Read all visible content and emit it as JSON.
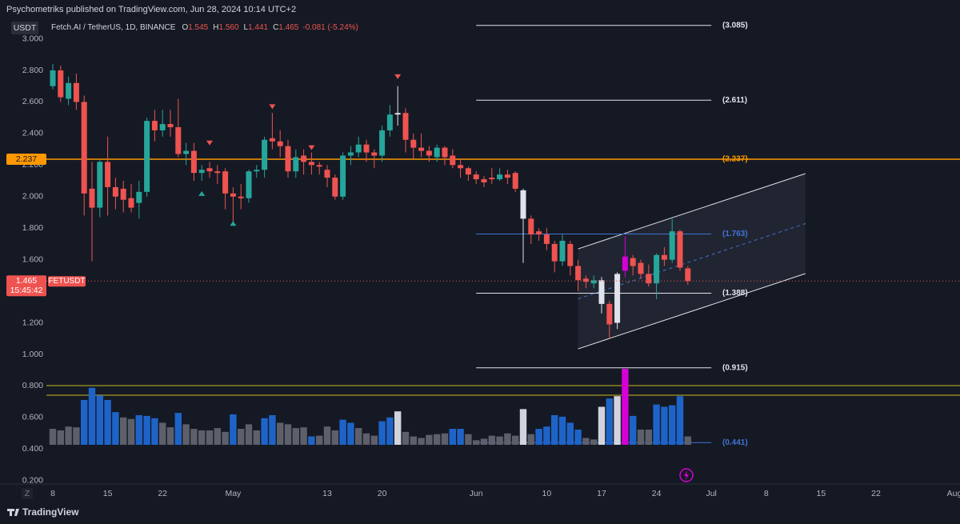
{
  "ui": {
    "header": "Psychometriks published on TradingView.com, Jun 28, 2024 10:14 UTC+2",
    "scale_button": "Z",
    "brand": "TradingView"
  },
  "chart_data": {
    "type": "candlestick",
    "currency": "USDT",
    "symbol": "FETUSDT",
    "countdown": "15:45:42",
    "legend": {
      "name": "Fetch.AI / TetherUS, 1D, BINANCE",
      "items": [
        {
          "key": "O",
          "value": "1.545"
        },
        {
          "key": "H",
          "value": "1.560"
        },
        {
          "key": "L",
          "value": "1.441"
        },
        {
          "key": "C",
          "value": "1.465"
        }
      ],
      "change": "-0.081 (-5.24%)"
    },
    "up_color": "#26a69a",
    "down_color": "#ef5350",
    "x": [
      "2024-04-08",
      "2024-04-09",
      "2024-04-10",
      "2024-04-11",
      "2024-04-12",
      "2024-04-13",
      "2024-04-14",
      "2024-04-15",
      "2024-04-16",
      "2024-04-17",
      "2024-04-18",
      "2024-04-19",
      "2024-04-20",
      "2024-04-21",
      "2024-04-22",
      "2024-04-23",
      "2024-04-24",
      "2024-04-25",
      "2024-04-26",
      "2024-04-27",
      "2024-04-28",
      "2024-04-29",
      "2024-04-30",
      "2024-05-01",
      "2024-05-02",
      "2024-05-03",
      "2024-05-04",
      "2024-05-05",
      "2024-05-06",
      "2024-05-07",
      "2024-05-08",
      "2024-05-09",
      "2024-05-10",
      "2024-05-11",
      "2024-05-12",
      "2024-05-13",
      "2024-05-14",
      "2024-05-15",
      "2024-05-16",
      "2024-05-17",
      "2024-05-18",
      "2024-05-19",
      "2024-05-20",
      "2024-05-21",
      "2024-05-22",
      "2024-05-23",
      "2024-05-24",
      "2024-05-25",
      "2024-05-26",
      "2024-05-27",
      "2024-05-28",
      "2024-05-29",
      "2024-05-30",
      "2024-05-31",
      "2024-06-01",
      "2024-06-02",
      "2024-06-03",
      "2024-06-04",
      "2024-06-05",
      "2024-06-06",
      "2024-06-07",
      "2024-06-08",
      "2024-06-09",
      "2024-06-10",
      "2024-06-11",
      "2024-06-12",
      "2024-06-13",
      "2024-06-14",
      "2024-06-15",
      "2024-06-16",
      "2024-06-17",
      "2024-06-18",
      "2024-06-19",
      "2024-06-20",
      "2024-06-21",
      "2024-06-22",
      "2024-06-23",
      "2024-06-24",
      "2024-06-25",
      "2024-06-26",
      "2024-06-27",
      "2024-06-28"
    ],
    "open": [
      2.7,
      2.8,
      2.62,
      2.72,
      2.6,
      2.05,
      1.93,
      2.22,
      2.06,
      2.05,
      1.99,
      1.96,
      2.03,
      2.48,
      2.42,
      2.46,
      2.44,
      2.27,
      2.29,
      2.15,
      2.18,
      2.16,
      2.16,
      2.02,
      2.0,
      1.99,
      2.16,
      2.17,
      2.37,
      2.35,
      2.32,
      2.16,
      2.26,
      2.22,
      2.2,
      2.17,
      2.12,
      2.0,
      2.26,
      2.28,
      2.33,
      2.28,
      2.26,
      2.42,
      2.53,
      2.53,
      2.36,
      2.31,
      2.29,
      2.25,
      2.31,
      2.26,
      2.2,
      2.18,
      2.14,
      2.11,
      2.12,
      2.11,
      2.14,
      2.15,
      2.04,
      1.86,
      1.78,
      1.76,
      1.7,
      1.59,
      1.7,
      1.56,
      1.48,
      1.45,
      1.47,
      1.32,
      1.2,
      1.53,
      1.61,
      1.58,
      1.51,
      1.45,
      1.63,
      1.6,
      1.78,
      1.545
    ],
    "high": [
      2.84,
      2.83,
      2.76,
      2.78,
      2.64,
      2.22,
      2.23,
      2.38,
      2.12,
      2.1,
      2.08,
      2.1,
      2.5,
      2.55,
      2.55,
      2.55,
      2.62,
      2.34,
      2.34,
      2.2,
      2.22,
      2.2,
      2.18,
      2.06,
      2.08,
      2.17,
      2.2,
      2.38,
      2.53,
      2.42,
      2.36,
      2.3,
      2.3,
      2.28,
      2.22,
      2.2,
      2.14,
      2.28,
      2.32,
      2.38,
      2.36,
      2.3,
      2.45,
      2.58,
      2.7,
      2.56,
      2.4,
      2.4,
      2.32,
      2.33,
      2.32,
      2.3,
      2.24,
      2.19,
      2.16,
      2.13,
      2.18,
      2.18,
      2.17,
      2.16,
      2.05,
      1.88,
      1.8,
      1.8,
      1.72,
      1.76,
      1.72,
      1.6,
      1.5,
      1.5,
      1.49,
      1.34,
      1.52,
      1.75,
      1.63,
      1.6,
      1.57,
      1.64,
      1.68,
      1.86,
      1.79,
      1.56
    ],
    "low": [
      2.68,
      2.6,
      2.58,
      2.55,
      1.88,
      1.59,
      1.87,
      1.88,
      1.92,
      1.9,
      1.9,
      1.86,
      2.0,
      2.35,
      2.38,
      2.38,
      2.25,
      2.2,
      2.1,
      2.1,
      2.12,
      2.08,
      1.92,
      1.84,
      1.92,
      1.96,
      2.12,
      2.12,
      2.3,
      2.25,
      2.12,
      2.12,
      2.14,
      2.14,
      2.14,
      2.06,
      1.98,
      1.98,
      2.2,
      2.25,
      2.22,
      2.18,
      2.22,
      2.38,
      2.45,
      2.28,
      2.24,
      2.25,
      2.22,
      2.22,
      2.2,
      2.18,
      2.12,
      2.1,
      2.08,
      2.06,
      2.08,
      2.1,
      2.08,
      2.03,
      1.58,
      1.7,
      1.72,
      1.66,
      1.52,
      1.56,
      1.5,
      1.4,
      1.42,
      1.42,
      1.26,
      1.1,
      1.16,
      1.49,
      1.5,
      1.48,
      1.43,
      1.35,
      1.56,
      1.58,
      1.53,
      1.441
    ],
    "close": [
      2.8,
      2.63,
      2.72,
      2.6,
      2.02,
      1.93,
      2.22,
      2.06,
      2.0,
      1.98,
      1.93,
      2.03,
      2.48,
      2.42,
      2.46,
      2.44,
      2.27,
      2.29,
      2.15,
      2.17,
      2.16,
      2.15,
      2.02,
      2.0,
      1.99,
      2.16,
      2.17,
      2.36,
      2.35,
      2.32,
      2.16,
      2.25,
      2.22,
      2.2,
      2.19,
      2.12,
      2.0,
      2.26,
      2.28,
      2.33,
      2.28,
      2.26,
      2.42,
      2.52,
      2.52,
      2.36,
      2.31,
      2.29,
      2.26,
      2.31,
      2.25,
      2.2,
      2.18,
      2.14,
      2.11,
      2.09,
      2.11,
      2.14,
      2.12,
      2.05,
      1.86,
      1.76,
      1.76,
      1.7,
      1.59,
      1.72,
      1.56,
      1.47,
      1.46,
      1.47,
      1.32,
      1.19,
      1.51,
      1.62,
      1.56,
      1.51,
      1.45,
      1.63,
      1.6,
      1.78,
      1.55,
      1.465
    ],
    "highlight_colors": [
      null,
      null,
      null,
      null,
      null,
      null,
      null,
      null,
      null,
      null,
      null,
      null,
      null,
      null,
      null,
      null,
      null,
      null,
      null,
      null,
      null,
      null,
      null,
      null,
      null,
      null,
      null,
      null,
      null,
      null,
      null,
      null,
      null,
      null,
      null,
      null,
      null,
      null,
      null,
      null,
      null,
      null,
      null,
      null,
      "#e0e3eb",
      null,
      null,
      null,
      null,
      null,
      null,
      null,
      null,
      null,
      null,
      null,
      null,
      null,
      null,
      null,
      "#e0e3eb",
      null,
      null,
      null,
      null,
      null,
      null,
      null,
      null,
      null,
      "#e0e3eb",
      null,
      "#e0e3eb",
      "#d500d5",
      null,
      null,
      null,
      null,
      null,
      null,
      null,
      null
    ],
    "volume": [
      21,
      19,
      24,
      23,
      59,
      75,
      65,
      59,
      43,
      36,
      34,
      39,
      38,
      35,
      29,
      23,
      42,
      27,
      21,
      19,
      19,
      22,
      17,
      40,
      21,
      27,
      19,
      35,
      39,
      29,
      27,
      22,
      23,
      11,
      12,
      24,
      19,
      33,
      29,
      22,
      15,
      12,
      31,
      36,
      44,
      17,
      11,
      9,
      13,
      14,
      15,
      21,
      21,
      14,
      6,
      8,
      12,
      11,
      15,
      12,
      47,
      14,
      21,
      24,
      39,
      37,
      29,
      20,
      9,
      7,
      50,
      61,
      64,
      100,
      38,
      20,
      20,
      53,
      50,
      52,
      64,
      11
    ],
    "volume_colors": [
      "#5d606b",
      "#5d606b",
      "#5d606b",
      "#5d606b",
      "#1e64c8",
      "#1e64c8",
      "#1e64c8",
      "#1e64c8",
      "#1e64c8",
      "#5d606b",
      "#5d606b",
      "#1e64c8",
      "#1e64c8",
      "#1e64c8",
      "#5d606b",
      "#5d606b",
      "#1e64c8",
      "#5d606b",
      "#5d606b",
      "#5d606b",
      "#5d606b",
      "#5d606b",
      "#5d606b",
      "#1e64c8",
      "#5d606b",
      "#5d606b",
      "#5d606b",
      "#1e64c8",
      "#1e64c8",
      "#5d606b",
      "#5d606b",
      "#5d606b",
      "#5d606b",
      "#1e64c8",
      "#5d606b",
      "#5d606b",
      "#5d606b",
      "#1e64c8",
      "#1e64c8",
      "#5d606b",
      "#5d606b",
      "#5d606b",
      "#1e64c8",
      "#1e64c8",
      "#d1d4dc",
      "#5d606b",
      "#5d606b",
      "#5d606b",
      "#5d606b",
      "#5d606b",
      "#5d606b",
      "#1e64c8",
      "#1e64c8",
      "#5d606b",
      "#5d606b",
      "#5d606b",
      "#5d606b",
      "#5d606b",
      "#5d606b",
      "#5d606b",
      "#d1d4dc",
      "#5d606b",
      "#1e64c8",
      "#1e64c8",
      "#1e64c8",
      "#1e64c8",
      "#1e64c8",
      "#1e64c8",
      "#5d606b",
      "#5d606b",
      "#d1d4dc",
      "#1e64c8",
      "#d1d4dc",
      "#d500d5",
      "#1e64c8",
      "#5d606b",
      "#5d606b",
      "#1e64c8",
      "#1e64c8",
      "#1e64c8",
      "#1e64c8",
      "#5d606b"
    ],
    "xlim": [
      "2024-04-07",
      "2024-08-02"
    ],
    "xticks": [
      {
        "value": "2024-04-08",
        "label": "8"
      },
      {
        "value": "2024-04-15",
        "label": "15"
      },
      {
        "value": "2024-04-22",
        "label": "22"
      },
      {
        "value": "2024-05-01",
        "label": "May"
      },
      {
        "value": "2024-05-13",
        "label": "13"
      },
      {
        "value": "2024-05-20",
        "label": "20"
      },
      {
        "value": "2024-06-01",
        "label": "Jun"
      },
      {
        "value": "2024-06-10",
        "label": "10"
      },
      {
        "value": "2024-06-17",
        "label": "17"
      },
      {
        "value": "2024-06-24",
        "label": "24"
      },
      {
        "value": "2024-07-01",
        "label": "Jul"
      },
      {
        "value": "2024-07-08",
        "label": "8"
      },
      {
        "value": "2024-07-15",
        "label": "15"
      },
      {
        "value": "2024-07-22",
        "label": "22"
      },
      {
        "value": "2024-08-01",
        "label": "Aug"
      }
    ],
    "ylim": [
      0.18,
      3.13
    ],
    "yticks": [
      {
        "value": 3.0,
        "label": "3.000"
      },
      {
        "value": 2.8,
        "label": "2.800"
      },
      {
        "value": 2.6,
        "label": "2.600"
      },
      {
        "value": 2.4,
        "label": "2.400"
      },
      {
        "value": 2.2,
        "label": "2.200"
      },
      {
        "value": 2.0,
        "label": "2.000"
      },
      {
        "value": 1.8,
        "label": "1.800"
      },
      {
        "value": 1.6,
        "label": "1.600"
      },
      {
        "value": 1.4,
        "label": "1.400"
      },
      {
        "value": 1.2,
        "label": "1.200"
      },
      {
        "value": 1.0,
        "label": "1.000"
      },
      {
        "value": 0.8,
        "label": "0.800"
      },
      {
        "value": 0.6,
        "label": "0.600"
      },
      {
        "value": 0.4,
        "label": "0.400"
      },
      {
        "value": 0.2,
        "label": "0.200"
      }
    ],
    "grid": false,
    "price_line_color": "#ef5350",
    "hline": {
      "value": 2.237,
      "label": "(2.237)",
      "color": "#ff9800"
    },
    "yellow_lines": {
      "values": [
        0.802,
        0.741
      ],
      "color": "#c9b820"
    },
    "fib_span": [
      "2024-06-01",
      "2024-07-01"
    ],
    "levels": [
      {
        "value": 3.085,
        "label": "(3.085)",
        "color": "#e0e3eb"
      },
      {
        "value": 2.611,
        "label": "(2.611)",
        "color": "#e0e3eb"
      },
      {
        "value": 1.763,
        "label": "(1.763)",
        "color": "#3f74d6"
      },
      {
        "value": 1.388,
        "label": "(1.388)",
        "color": "#e0e3eb"
      },
      {
        "value": 0.915,
        "label": "(0.915)",
        "color": "#e0e3eb"
      },
      {
        "value": 0.441,
        "label": "(0.441)",
        "color": "#3f74d6"
      }
    ],
    "channel": {
      "x": [
        "2024-06-14",
        "2024-07-13"
      ],
      "upper": [
        1.669,
        2.146
      ],
      "lower": [
        1.035,
        1.512
      ],
      "color": "#e0e3eb",
      "mid_color": "#3f74d6"
    },
    "signals": [
      {
        "x": "2024-04-28",
        "value": 2.34,
        "direction": "down"
      },
      {
        "x": "2024-05-06",
        "value": 2.57,
        "direction": "down"
      },
      {
        "x": "2024-05-11",
        "value": 2.31,
        "direction": "down"
      },
      {
        "x": "2024-05-22",
        "value": 2.76,
        "direction": "down"
      },
      {
        "x": "2024-04-27",
        "value": 2.02,
        "direction": "up"
      },
      {
        "x": "2024-05-01",
        "value": 1.83,
        "direction": "up"
      }
    ]
  }
}
